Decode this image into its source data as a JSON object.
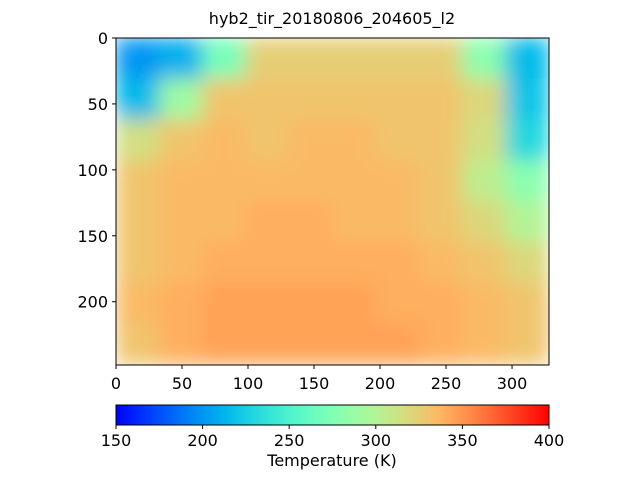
{
  "chart_data": {
    "type": "heatmap",
    "title": "hyb2_tir_20180806_204605_l2",
    "cmap": "rainbow",
    "xlim": [
      0,
      328
    ],
    "ylim": [
      248,
      0
    ],
    "xticks": [
      0,
      50,
      100,
      150,
      200,
      250,
      300
    ],
    "yticks": [
      0,
      50,
      100,
      150,
      200
    ],
    "z": [
      [
        200,
        210,
        270,
        325,
        325,
        325,
        325,
        325,
        280,
        215
      ],
      [
        215,
        290,
        330,
        330,
        330,
        330,
        330,
        330,
        320,
        220
      ],
      [
        315,
        330,
        335,
        330,
        335,
        335,
        330,
        330,
        315,
        230
      ],
      [
        330,
        335,
        335,
        335,
        335,
        335,
        335,
        330,
        305,
        280
      ],
      [
        330,
        335,
        335,
        340,
        340,
        335,
        335,
        330,
        320,
        300
      ],
      [
        330,
        335,
        340,
        340,
        340,
        340,
        340,
        335,
        330,
        320
      ],
      [
        335,
        340,
        345,
        345,
        345,
        345,
        340,
        340,
        335,
        330
      ],
      [
        330,
        340,
        345,
        345,
        345,
        345,
        345,
        340,
        335,
        330
      ]
    ],
    "colorbar": {
      "label": "Temperature (K)",
      "lim": [
        150,
        400
      ],
      "ticks": [
        150,
        200,
        250,
        300,
        350,
        400
      ]
    }
  }
}
